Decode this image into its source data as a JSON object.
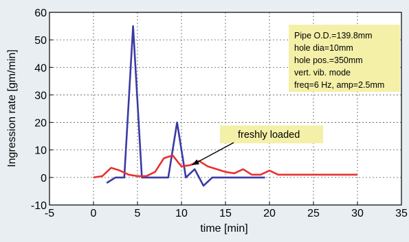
{
  "chart_data": {
    "type": "line",
    "xlabel": "time [min]",
    "ylabel": "Ingression rate [gm/min]",
    "xlim": [
      -5,
      35
    ],
    "ylim": [
      -10,
      60
    ],
    "xticks": [
      -5,
      0,
      5,
      10,
      15,
      20,
      25,
      30,
      35
    ],
    "yticks": [
      -10,
      0,
      10,
      20,
      30,
      40,
      50,
      60
    ],
    "xtick_labels": [
      "-5",
      "0",
      "5",
      "10",
      "15",
      "20",
      "25",
      "30",
      "35"
    ],
    "ytick_labels": [
      "-10",
      "0",
      "10",
      "20",
      "30",
      "40",
      "50",
      "60"
    ],
    "grid": true,
    "series": [
      {
        "color": "#3a3aa6",
        "x": [
          1.5,
          2.5,
          3.5,
          4.5,
          5.5,
          6.5,
          7.5,
          8.5,
          9.5,
          10.5,
          11.5,
          12.5,
          13.5,
          14.5,
          15.5,
          16.5,
          17.5,
          18.5,
          19.5
        ],
        "y": [
          -2,
          0,
          0,
          55,
          0,
          0,
          0,
          0,
          20,
          0,
          3,
          -3,
          0,
          0,
          0,
          0,
          0,
          0,
          0
        ]
      },
      {
        "color": "#e83030",
        "x": [
          0,
          1,
          2,
          3,
          4,
          5,
          6,
          7,
          8,
          9,
          10,
          11,
          12,
          13,
          14,
          15,
          16,
          17,
          18,
          19,
          20,
          21,
          22,
          23,
          24,
          25,
          26,
          27,
          28,
          29,
          30
        ],
        "y": [
          0,
          0.5,
          3.5,
          2.5,
          1,
          0.5,
          0.5,
          2,
          7,
          8,
          4,
          4.5,
          6,
          4,
          3,
          2,
          1.5,
          3,
          1,
          1,
          2.5,
          1,
          1,
          1,
          1,
          1,
          1,
          1,
          1,
          1,
          1
        ]
      }
    ],
    "annotations": [
      {
        "text": "freshly loaded",
        "arrow_to": [
          11.2,
          4.5
        ]
      }
    ],
    "info_box": [
      "Pipe O.D.=139.8mm",
      "hole dia=10mm",
      "hole pos.=350mm",
      "vert. vib. mode",
      "freq=6 Hz, amp=2.5mm"
    ],
    "colors": {
      "background": "#e8eef2",
      "plot_area": "#ffffff",
      "note_box": "#f4f0a8"
    }
  }
}
